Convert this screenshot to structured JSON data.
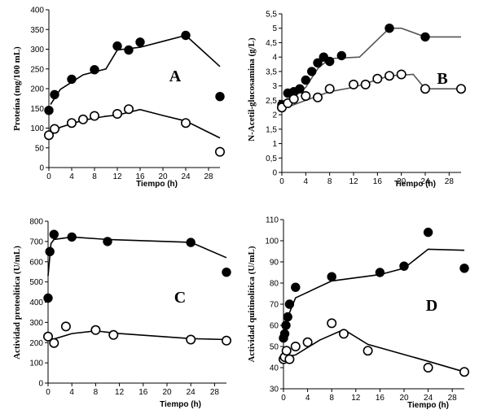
{
  "colors": {
    "filled": "#000000",
    "open": "#000000",
    "open_fill": "#ffffff",
    "line_filled": "#000000",
    "line_open": "#000000",
    "line_open_B": "#555555",
    "line_filled_B": "#555555"
  },
  "chart_data": [
    {
      "id": "A",
      "type": "scatter",
      "panel_letter": "A",
      "ylabel": "Proteína (mg/100 mL)",
      "xlabel": "Tiempo (h)",
      "xlim": [
        0,
        30
      ],
      "ylim": [
        0,
        400
      ],
      "xticks": [
        0,
        4,
        8,
        12,
        16,
        20,
        24,
        28
      ],
      "yticks": [
        0,
        50,
        100,
        150,
        200,
        250,
        300,
        350,
        400
      ],
      "series": [
        {
          "marker": "filled",
          "points": [
            [
              0,
              145
            ],
            [
              1,
              185
            ],
            [
              4,
              224
            ],
            [
              8,
              248
            ],
            [
              12,
              308
            ],
            [
              14,
              298
            ],
            [
              16,
              318
            ],
            [
              24,
              335
            ],
            [
              30,
              180
            ]
          ],
          "curve": [
            [
              0.3,
              160
            ],
            [
              2,
              198
            ],
            [
              6,
              235
            ],
            [
              10,
              250
            ],
            [
              12,
              298
            ],
            [
              16,
              305
            ],
            [
              20,
              320
            ],
            [
              24,
              335
            ],
            [
              30,
              256
            ]
          ]
        },
        {
          "marker": "open",
          "points": [
            [
              0,
              82
            ],
            [
              1,
              98
            ],
            [
              4,
              113
            ],
            [
              6,
              122
            ],
            [
              8,
              131
            ],
            [
              12,
              136
            ],
            [
              14,
              148
            ],
            [
              24,
              113
            ],
            [
              30,
              40
            ]
          ],
          "curve": [
            [
              0.3,
              80
            ],
            [
              2,
              102
            ],
            [
              6,
              120
            ],
            [
              10,
              130
            ],
            [
              12,
              133
            ],
            [
              16,
              147
            ],
            [
              20,
              132
            ],
            [
              24,
              118
            ],
            [
              30,
              75
            ]
          ]
        }
      ]
    },
    {
      "id": "B",
      "type": "scatter",
      "panel_letter": "B",
      "ylabel": "N-Acetil-glucosamina (g/L)",
      "xlabel": "Tiempo (h)",
      "xlim": [
        0,
        30
      ],
      "ylim": [
        0,
        5.5
      ],
      "xticks": [
        0,
        4,
        8,
        12,
        16,
        20,
        24,
        28
      ],
      "yticks": [
        0,
        0.5,
        1,
        1.5,
        2,
        2.5,
        3,
        3.5,
        4,
        4.5,
        5,
        5.5
      ],
      "ytick_labels": [
        "0",
        "0,5",
        "1",
        "1,5",
        "2",
        "2,5",
        "3",
        "3,5",
        "4",
        "4,5",
        "5",
        "5,5"
      ],
      "series": [
        {
          "marker": "filled",
          "points": [
            [
              0,
              2.35
            ],
            [
              1,
              2.75
            ],
            [
              2,
              2.8
            ],
            [
              3,
              2.9
            ],
            [
              4,
              3.2
            ],
            [
              5,
              3.5
            ],
            [
              6,
              3.8
            ],
            [
              7,
              4.0
            ],
            [
              8,
              3.85
            ],
            [
              10,
              4.05
            ],
            [
              18,
              5.0
            ],
            [
              24,
              4.7
            ]
          ],
          "curve": [
            [
              0,
              2.25
            ],
            [
              2,
              2.6
            ],
            [
              4,
              2.95
            ],
            [
              6,
              3.6
            ],
            [
              8,
              3.95
            ],
            [
              13,
              4.0
            ],
            [
              18,
              5.0
            ],
            [
              20,
              5.0
            ],
            [
              24,
              4.7
            ],
            [
              30,
              4.7
            ]
          ]
        },
        {
          "marker": "open",
          "points": [
            [
              0,
              2.25
            ],
            [
              1,
              2.4
            ],
            [
              2,
              2.55
            ],
            [
              4,
              2.65
            ],
            [
              6,
              2.6
            ],
            [
              8,
              2.9
            ],
            [
              12,
              3.05
            ],
            [
              14,
              3.05
            ],
            [
              16,
              3.25
            ],
            [
              18,
              3.35
            ],
            [
              20,
              3.4
            ],
            [
              24,
              2.9
            ],
            [
              30,
              2.9
            ]
          ],
          "curve": [
            [
              0,
              2.2
            ],
            [
              2,
              2.35
            ],
            [
              4,
              2.5
            ],
            [
              8,
              2.8
            ],
            [
              12,
              2.95
            ],
            [
              18,
              3.35
            ],
            [
              22,
              3.4
            ],
            [
              24,
              2.9
            ],
            [
              30,
              2.9
            ]
          ]
        }
      ]
    },
    {
      "id": "C",
      "type": "scatter",
      "panel_letter": "C",
      "ylabel": "Actividad proteolítica (U/mL)",
      "xlabel": "Tiempo (h)",
      "xlim": [
        0,
        30
      ],
      "ylim": [
        0,
        800
      ],
      "xticks": [
        0,
        4,
        8,
        12,
        16,
        20,
        24,
        28
      ],
      "yticks": [
        0,
        100,
        200,
        300,
        400,
        500,
        600,
        700,
        800
      ],
      "series": [
        {
          "marker": "filled",
          "points": [
            [
              0,
              420
            ],
            [
              0.3,
              650
            ],
            [
              1,
              735
            ],
            [
              4,
              722
            ],
            [
              10,
              700
            ],
            [
              24,
              695
            ],
            [
              30,
              548
            ]
          ],
          "curve": [
            [
              0,
              530
            ],
            [
              0.5,
              690
            ],
            [
              1,
              710
            ],
            [
              4,
              722
            ],
            [
              10,
              710
            ],
            [
              24,
              696
            ],
            [
              30,
              620
            ]
          ]
        },
        {
          "marker": "open",
          "points": [
            [
              0,
              230
            ],
            [
              1,
              198
            ],
            [
              3,
              280
            ],
            [
              8,
              262
            ],
            [
              11,
              238
            ],
            [
              24,
              215
            ],
            [
              30,
              210
            ]
          ],
          "curve": [
            [
              0,
              215
            ],
            [
              1,
              218
            ],
            [
              4,
              245
            ],
            [
              8,
              258
            ],
            [
              12,
              245
            ],
            [
              24,
              220
            ],
            [
              30,
              215
            ]
          ]
        }
      ]
    },
    {
      "id": "D",
      "type": "scatter",
      "panel_letter": "D",
      "ylabel": "Actividad quitinolítica (U/mL)",
      "xlabel": "Tiempo (h)",
      "xlim": [
        0,
        30
      ],
      "ylim": [
        30,
        110
      ],
      "xticks": [
        0,
        4,
        8,
        12,
        16,
        20,
        24,
        28
      ],
      "yticks": [
        30,
        40,
        50,
        60,
        70,
        80,
        90,
        100,
        110
      ],
      "series": [
        {
          "marker": "filled",
          "points": [
            [
              0,
              54
            ],
            [
              0.2,
              56
            ],
            [
              0.4,
              60
            ],
            [
              0.7,
              64
            ],
            [
              1,
              70
            ],
            [
              2,
              78
            ],
            [
              8,
              83
            ],
            [
              16,
              85
            ],
            [
              20,
              88
            ],
            [
              24,
              104
            ],
            [
              30,
              87
            ]
          ],
          "curve": [
            [
              0,
              52
            ],
            [
              0.4,
              58
            ],
            [
              1,
              66
            ],
            [
              2,
              73
            ],
            [
              8,
              81
            ],
            [
              16,
              84
            ],
            [
              20,
              87
            ],
            [
              24,
              96
            ],
            [
              30,
              95.5
            ]
          ]
        },
        {
          "marker": "open",
          "points": [
            [
              0,
              44
            ],
            [
              0.2,
              45
            ],
            [
              0.5,
              48
            ],
            [
              1,
              44
            ],
            [
              2,
              50
            ],
            [
              4,
              52
            ],
            [
              8,
              61
            ],
            [
              10,
              56
            ],
            [
              14,
              48
            ],
            [
              24,
              40
            ],
            [
              30,
              38
            ]
          ],
          "curve": [
            [
              0,
              45
            ],
            [
              2,
              46
            ],
            [
              6,
              53
            ],
            [
              10,
              58
            ],
            [
              14,
              51
            ],
            [
              24,
              43
            ],
            [
              30,
              38
            ]
          ]
        }
      ]
    }
  ]
}
